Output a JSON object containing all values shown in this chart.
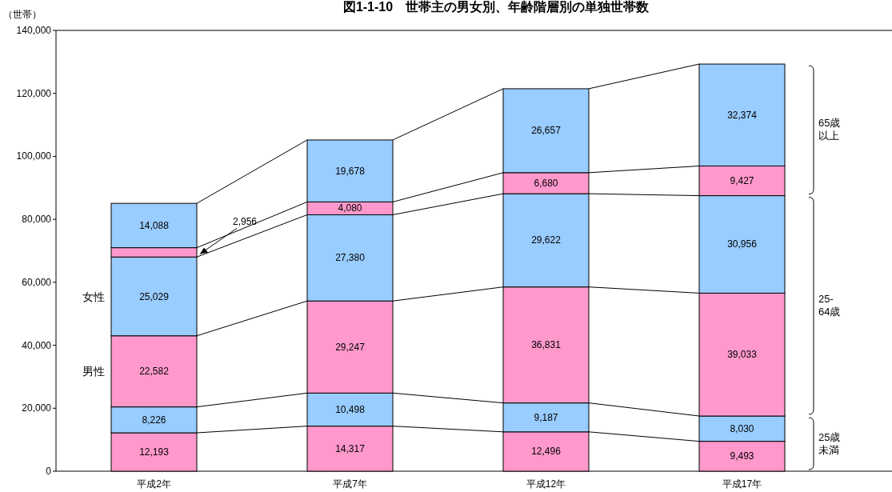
{
  "chart_data": {
    "type": "bar",
    "stacked": true,
    "title": "図1-1-10　世帯主の男女別、年齢階層別の単独世帯数",
    "ylabel": "（世帯）",
    "categories": [
      "平成2年",
      "平成7年",
      "平成12年",
      "平成17年"
    ],
    "ylim": [
      0,
      140000
    ],
    "yticks": [
      0,
      {
        "value": 20000,
        "label": "20,000"
      },
      {
        "value": 40000,
        "label": "40,000"
      },
      {
        "value": 60000,
        "label": "60,000"
      },
      {
        "value": 80000,
        "label": "80,000"
      },
      {
        "value": 100000,
        "label": "100,000"
      },
      {
        "value": 120000,
        "label": "120,000"
      },
      {
        "value": 140000,
        "label": "140,000"
      }
    ],
    "grid": false,
    "series": [
      {
        "color": "#ff99cc",
        "values": [
          12193,
          14317,
          12496,
          9493
        ],
        "value_labels": [
          "12,193",
          "14,317",
          "12,496",
          "9,493"
        ]
      },
      {
        "color": "#99ccff",
        "values": [
          8226,
          10498,
          9187,
          8030
        ],
        "value_labels": [
          "8,226",
          "10,498",
          "9,187",
          "8,030"
        ]
      },
      {
        "name": "男性",
        "color": "#ff99cc",
        "values": [
          22582,
          29247,
          36831,
          39033
        ],
        "value_labels": [
          "22,582",
          "29,247",
          "36,831",
          "39,033"
        ]
      },
      {
        "name": "女性",
        "color": "#99ccff",
        "values": [
          25029,
          27380,
          29622,
          30956
        ],
        "value_labels": [
          "25,029",
          "27,380",
          "29,622",
          "30,956"
        ]
      },
      {
        "color": "#ff99cc",
        "values": [
          2956,
          4080,
          6680,
          9427
        ],
        "value_labels": [
          "2,956",
          "4,080",
          "6,680",
          "9,427"
        ]
      },
      {
        "color": "#99ccff",
        "values": [
          14088,
          19678,
          26657,
          32374
        ],
        "value_labels": [
          "14,088",
          "19,678",
          "26,657",
          "32,374"
        ]
      }
    ],
    "annotations": [
      "25歳未満",
      "25-64歳",
      "65歳以上"
    ]
  }
}
